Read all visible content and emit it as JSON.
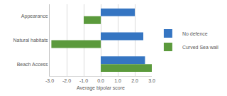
{
  "chart_data": {
    "type": "bar",
    "orientation": "horizontal",
    "categories": [
      "Appearance",
      "Natural habitats",
      "Beach Access"
    ],
    "series": [
      {
        "name": "No defence",
        "color": "#3575c2",
        "values": [
          2.0,
          2.5,
          2.6
        ]
      },
      {
        "name": "Curved Sea wall",
        "color": "#5b9a3c",
        "values": [
          -1.0,
          -2.9,
          3.0
        ]
      }
    ],
    "x_label": "Average bipolar score",
    "xlim": [
      -3,
      3
    ],
    "xticks": [
      {
        "value": -3,
        "label": "-3.0"
      },
      {
        "value": -2,
        "label": "-2.0"
      },
      {
        "value": -1,
        "label": "-1.0"
      },
      {
        "value": 0,
        "label": "0.0"
      },
      {
        "value": 1,
        "label": "1.0"
      },
      {
        "value": 2,
        "label": "2.0"
      },
      {
        "value": 3,
        "label": "3.0"
      }
    ],
    "grid": true,
    "legend": "right"
  }
}
